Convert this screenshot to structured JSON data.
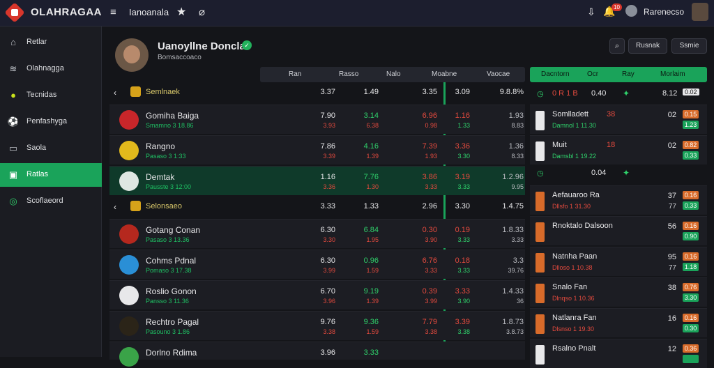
{
  "topbar": {
    "brand": "OLAHRAGAA",
    "link": "Ianoanala",
    "user_name": "Rarenecso",
    "badge_count": "10"
  },
  "sidebar": {
    "items": [
      {
        "label": "Retlar",
        "icon": "home-icon"
      },
      {
        "label": "Olahnagga",
        "icon": "layers-icon"
      },
      {
        "label": "Tecnidas",
        "icon": "tennis-ball-icon"
      },
      {
        "label": "Penfashyga",
        "icon": "soccer-ball-icon"
      },
      {
        "label": "Saola",
        "icon": "monitor-icon"
      },
      {
        "label": "Ratlas",
        "icon": "square-icon",
        "active": true
      },
      {
        "label": "Scoflaeord",
        "icon": "globe-icon"
      }
    ]
  },
  "profile": {
    "name": "Uanoyllne Doncla",
    "subtitle": "Bomsaccoaco",
    "btn_search": "Rusnak",
    "btn_score": "Ssmie"
  },
  "columns": [
    "Ran",
    "Rasso",
    "Nalo",
    "Moabne",
    "Vaocae"
  ],
  "rows": [
    {
      "type": "group",
      "label": "Semlnaek",
      "cells": [
        "3.37",
        "1.49",
        "3.35",
        "3.09",
        "9.8.8%"
      ]
    },
    {
      "type": "team",
      "name": "Gomiha Baiga",
      "sub": "Smamno 3 18.86",
      "crest": "#c9262a",
      "cells": [
        [
          "7.90",
          "3.93"
        ],
        [
          "3.14",
          "6.38"
        ],
        [
          "6.96",
          "0.98"
        ],
        [
          "1.16",
          "1.33"
        ],
        [
          "1.93",
          "8.83"
        ]
      ]
    },
    {
      "type": "team",
      "name": "Rangno",
      "sub": "Pasaso 3 1:33",
      "crest": "#e2b91c",
      "cells": [
        [
          "7.86",
          "3.39"
        ],
        [
          "4.16",
          "1.39"
        ],
        [
          "7.39",
          "1.93"
        ],
        [
          "3.36",
          "3.30"
        ],
        [
          "1.36",
          "8.33"
        ]
      ]
    },
    {
      "type": "team",
      "name": "Demtak",
      "sub": "Pausste 3 12:00",
      "crest": "#dfe6e2",
      "sel": true,
      "cells": [
        [
          "1.16",
          "3.36"
        ],
        [
          "7.76",
          "1.30"
        ],
        [
          "3.86",
          "3.33"
        ],
        [
          "3.19",
          "3.33"
        ],
        [
          "1.2.96",
          "9.95"
        ]
      ]
    },
    {
      "type": "group",
      "label": "Selonsaeo",
      "cells": [
        "3.33",
        "1.33",
        "2.96",
        "3.30",
        "1.4.75"
      ]
    },
    {
      "type": "team",
      "name": "Gotang Conan",
      "sub": "Pasaso 3 13.36",
      "crest": "#b5281e",
      "cells": [
        [
          "6.30",
          "3.30"
        ],
        [
          "6.84",
          "1.95"
        ],
        [
          "0.30",
          "3.90"
        ],
        [
          "0.19",
          "3.33"
        ],
        [
          "1.8.33",
          "3.33"
        ]
      ]
    },
    {
      "type": "team",
      "name": "Cohms Pdnal",
      "sub": "Pomaso 3 17.38",
      "crest": "#2a8fd6",
      "cells": [
        [
          "6.30",
          "3.99"
        ],
        [
          "0.96",
          "1.59"
        ],
        [
          "6.76",
          "3.33"
        ],
        [
          "0.18",
          "3.33"
        ],
        [
          "3.3",
          "39.76"
        ]
      ]
    },
    {
      "type": "team",
      "name": "Roslio Gonon",
      "sub": "Pansso 3 11.36",
      "crest": "#e8e8ea",
      "cells": [
        [
          "6.70",
          "3.96"
        ],
        [
          "9.19",
          "1.39"
        ],
        [
          "0.39",
          "3.99"
        ],
        [
          "3.33",
          "3.90"
        ],
        [
          "1.4.33",
          "36"
        ]
      ]
    },
    {
      "type": "team",
      "name": "Rechtro Pagal",
      "sub": "Pasouno 3 1.86",
      "crest": "#2b2418",
      "cells": [
        [
          "9.76",
          "3.38"
        ],
        [
          "9.36",
          "1.59"
        ],
        [
          "7.79",
          "3.38"
        ],
        [
          "3.39",
          "3.38"
        ],
        [
          "1.8.73",
          "3.8.73"
        ]
      ]
    },
    {
      "type": "team",
      "name": "Dorlno Rdima",
      "sub": "",
      "crest": "#3aa348",
      "cells": [
        [
          "3.96",
          ""
        ],
        [
          "3.33",
          ""
        ],
        [
          "",
          ""
        ],
        [
          "",
          ""
        ],
        [
          "",
          ""
        ]
      ]
    }
  ],
  "right_panel": {
    "headers": [
      "Dacntorn",
      "Ocr",
      "Ray",
      "Morlaim"
    ],
    "groups": [
      {
        "label": "0 R 1 B",
        "value": "0.40",
        "score": "8.12",
        "pill": "0.02"
      },
      {
        "label": "",
        "value": "0.04",
        "score": "",
        "pill": ""
      }
    ],
    "rows": [
      {
        "team": "Somlladett",
        "sub": "Damnol 1 11.30",
        "mid": "38",
        "n": "02",
        "n2": "",
        "p1": "0.15",
        "p2": "1.23",
        "sqc": "#e8e8ea"
      },
      {
        "team": "Muit",
        "sub": "Damsbl 1 19.22",
        "mid": "18",
        "n": "02",
        "n2": "",
        "p1": "0.82",
        "p2": "0.33",
        "sqc": "#e8e8ea"
      },
      {
        "team": "Aefauaroo Ra",
        "sub": "Dllsfo 1 31.30",
        "mid": "",
        "n": "37",
        "n2": "77",
        "p1": "0.16",
        "p2": "0.33",
        "sqc": "#d86b2a"
      },
      {
        "team": "Rnoktalo Dalsoon",
        "sub": "",
        "mid": "",
        "n": "56",
        "n2": "",
        "p1": "0.16",
        "p2": "0.90",
        "sqc": "#d86b2a"
      },
      {
        "team": "Natnha Paan",
        "sub": "Dlloso 1 10.38",
        "mid": "",
        "n": "95",
        "n2": "77",
        "p1": "0.16",
        "p2": "1.18",
        "sqc": "#d86b2a"
      },
      {
        "team": "Snalo Fan",
        "sub": "Dlnqso 1 10.36",
        "mid": "",
        "n": "38",
        "n2": "",
        "p1": "0.76",
        "p2": "3.30",
        "sqc": "#d86b2a"
      },
      {
        "team": "Natlanra Fan",
        "sub": "Dlsnso 1 19.30",
        "mid": "",
        "n": "16",
        "n2": "",
        "p1": "0.16",
        "p2": "0.30",
        "sqc": "#d86b2a"
      },
      {
        "team": "Rsalno Pnalt",
        "sub": "",
        "mid": "",
        "n": "12",
        "n2": "",
        "p1": "0.36",
        "p2": "",
        "sqc": "#e8e8ea"
      }
    ]
  }
}
